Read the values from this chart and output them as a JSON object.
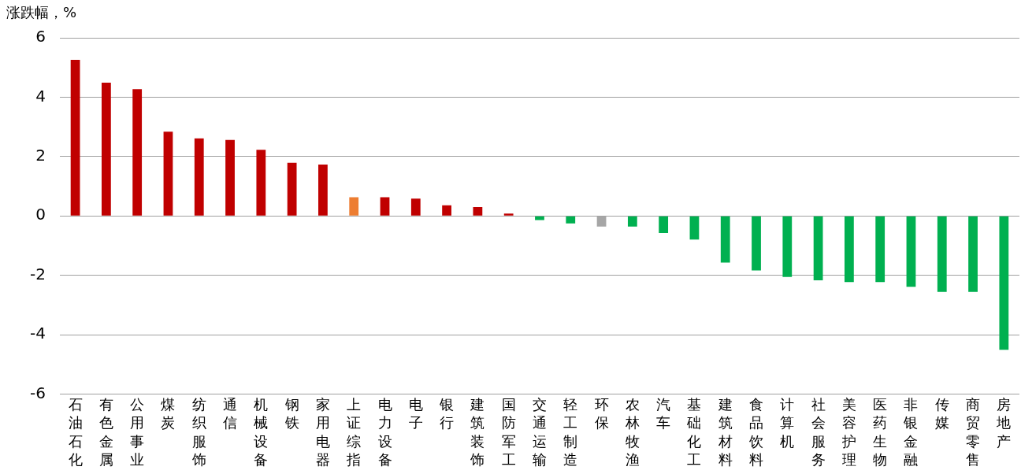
{
  "chart_data": {
    "type": "bar",
    "ylabel": "涨跌幅，%",
    "categories": [
      "石油石化",
      "有色金属",
      "公用事业",
      "煤炭",
      "纺织服饰",
      "通信",
      "机械设备",
      "钢铁",
      "家用电器",
      "上证综指",
      "电力设备",
      "电子",
      "银行",
      "建筑装饰",
      "国防军工",
      "交通运输",
      "轻工制造",
      "环保",
      "农林牧渔",
      "汽车",
      "基础化工",
      "建筑材料",
      "食品饮料",
      "计算机",
      "社会服务",
      "美容护理",
      "医药生物",
      "非银金融",
      "传媒",
      "商贸零售",
      "房地产"
    ],
    "values": [
      5.26,
      4.49,
      4.27,
      2.84,
      2.61,
      2.56,
      2.23,
      1.79,
      1.73,
      0.63,
      0.63,
      0.58,
      0.36,
      0.3,
      0.08,
      -0.14,
      -0.25,
      -0.36,
      -0.36,
      -0.58,
      -0.8,
      -1.57,
      -1.84,
      -2.06,
      -2.17,
      -2.23,
      -2.23,
      -2.39,
      -2.56,
      -2.56,
      -4.51
    ],
    "colors": [
      "#c00000",
      "#c00000",
      "#c00000",
      "#c00000",
      "#c00000",
      "#c00000",
      "#c00000",
      "#c00000",
      "#c00000",
      "#ed7d31",
      "#c00000",
      "#c00000",
      "#c00000",
      "#c00000",
      "#c00000",
      "#00b050",
      "#00b050",
      "#a6a6a6",
      "#00b050",
      "#00b050",
      "#00b050",
      "#00b050",
      "#00b050",
      "#00b050",
      "#00b050",
      "#00b050",
      "#00b050",
      "#00b050",
      "#00b050",
      "#00b050",
      "#00b050"
    ],
    "ylim": [
      -6,
      6
    ],
    "yticks": [
      -6,
      -4,
      -2,
      0,
      2,
      4,
      6
    ],
    "grid": "y",
    "legend": false
  }
}
